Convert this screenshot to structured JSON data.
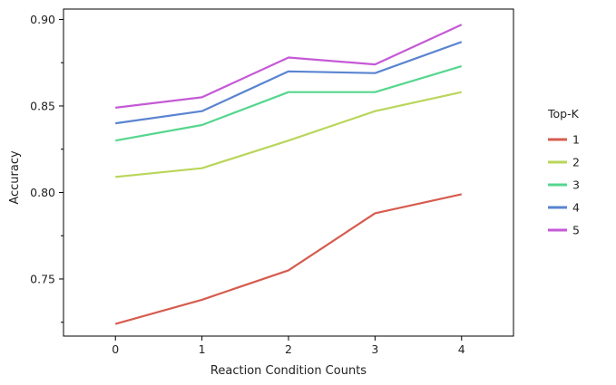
{
  "chart_data": {
    "type": "line",
    "title": "",
    "xlabel": "Reaction Condition Counts",
    "ylabel": "Accuracy",
    "x": [
      0,
      1,
      2,
      3,
      4
    ],
    "x_ticks": [
      "0",
      "1",
      "2",
      "3",
      "4"
    ],
    "xlim": [
      -0.6,
      4.6
    ],
    "ylim": [
      0.717,
      0.906
    ],
    "y_ticks": [
      0.75,
      0.8,
      0.85,
      0.9
    ],
    "y_tick_labels": [
      "0.75",
      "0.80",
      "0.85",
      "0.90"
    ],
    "grid": false,
    "legend": {
      "title": "Top-K",
      "position": "right"
    },
    "series": [
      {
        "name": "1",
        "color": "#d65c4e",
        "values": [
          0.724,
          0.738,
          0.755,
          0.788,
          0.799
        ]
      },
      {
        "name": "2",
        "color": "#b9d65a",
        "values": [
          0.809,
          0.814,
          0.83,
          0.847,
          0.858
        ]
      },
      {
        "name": "3",
        "color": "#55d68e",
        "values": [
          0.83,
          0.839,
          0.858,
          0.858,
          0.873
        ]
      },
      {
        "name": "4",
        "color": "#5a84d0",
        "values": [
          0.84,
          0.847,
          0.87,
          0.869,
          0.887
        ]
      },
      {
        "name": "5",
        "color": "#c55ad6",
        "values": [
          0.849,
          0.855,
          0.878,
          0.874,
          0.897
        ]
      }
    ]
  }
}
